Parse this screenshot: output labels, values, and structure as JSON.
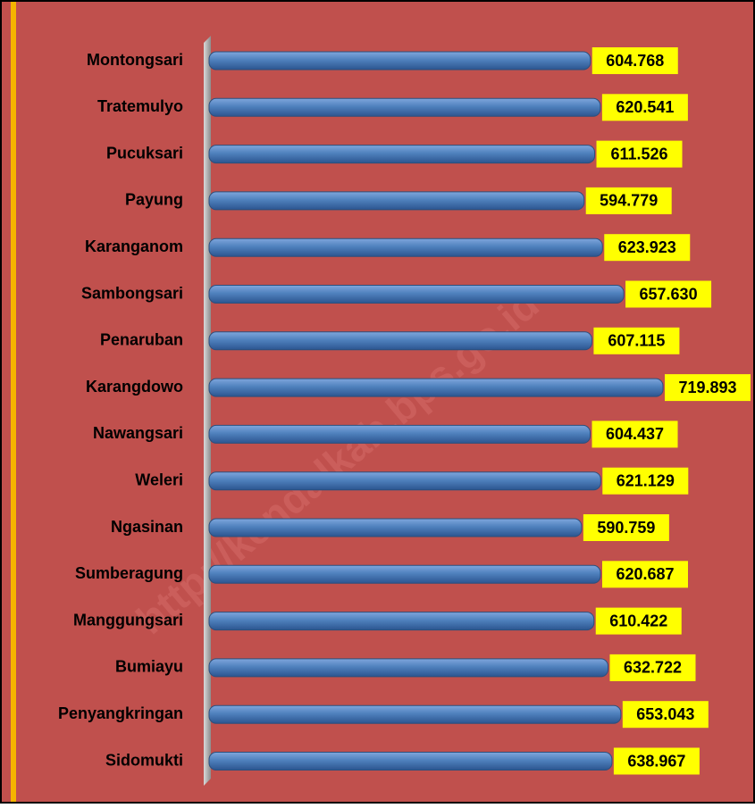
{
  "chart_data": {
    "type": "bar",
    "orientation": "horizontal",
    "watermark": "http://kendalkab.bps.go.id",
    "categories": [
      "Montongsari",
      "Tratemulyo",
      "Pucuksari",
      "Payung",
      "Karanganom",
      "Sambongsari",
      "Penaruban",
      "Karangdowo",
      "Nawangsari",
      "Weleri",
      "Ngasinan",
      "Sumberagung",
      "Manggungsari",
      "Bumiayu",
      "Penyangkringan",
      "Sidomukti"
    ],
    "values": [
      604.768,
      620.541,
      611.526,
      594.779,
      623.923,
      657.63,
      607.115,
      719.893,
      604.437,
      621.129,
      590.759,
      620.687,
      610.422,
      632.722,
      653.043,
      638.967
    ],
    "value_labels": [
      "604.768",
      "620.541",
      "611.526",
      "594.779",
      "623.923",
      "657.630",
      "607.115",
      "719.893",
      "604.437",
      "621.129",
      "590.759",
      "620.687",
      "610.422",
      "632.722",
      "653.043",
      "638.967"
    ],
    "color": "#4f81bd",
    "label_color": "#ffff00",
    "background": "#c0504d"
  }
}
